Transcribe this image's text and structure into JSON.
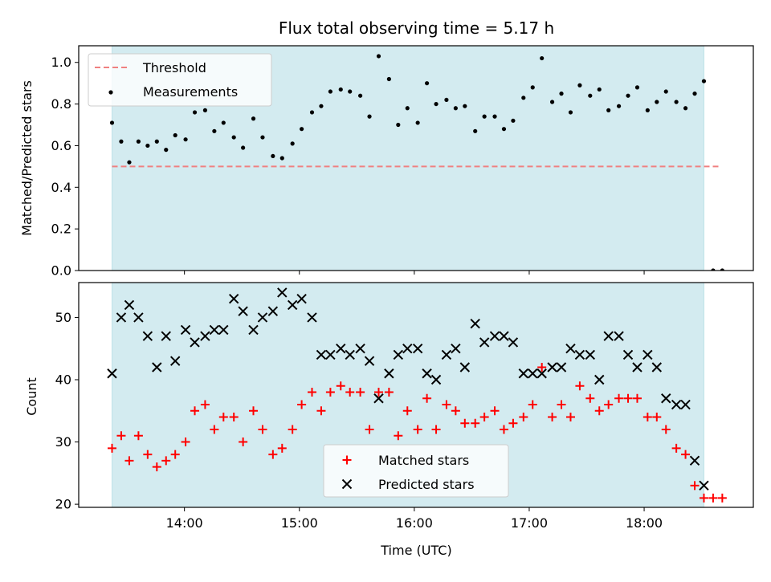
{
  "chart_data": {
    "type": "scatter",
    "title": "Flux total observing time = 5.17 h",
    "xlabel": "Time (UTC)",
    "x_tick_labels": [
      "14:00",
      "15:00",
      "16:00",
      "17:00",
      "18:00"
    ],
    "x_tick_values": [
      14.0,
      15.0,
      16.0,
      17.0,
      18.0
    ],
    "xlim": [
      13.08,
      18.95
    ],
    "observing_window": [
      13.37,
      18.52
    ],
    "observing_color": "#d3ebf0",
    "panels": [
      {
        "ylabel": "Matched/Predicted stars",
        "ylim": [
          0.0,
          1.08
        ],
        "yticks": [
          0.0,
          0.2,
          0.4,
          0.6,
          0.8,
          1.0
        ],
        "ytick_labels": [
          "0.0",
          "0.2",
          "0.4",
          "0.6",
          "0.8",
          "1.0"
        ],
        "legend_position": "top-left",
        "threshold": {
          "name": "Threshold",
          "value": 0.5,
          "x_range": [
            13.37,
            18.65
          ],
          "color": "#f08080"
        },
        "series": [
          {
            "name": "Measurements",
            "marker": "dot",
            "color": "#000000",
            "points": [
              [
                13.37,
                0.71
              ],
              [
                13.45,
                0.62
              ],
              [
                13.52,
                0.52
              ],
              [
                13.6,
                0.62
              ],
              [
                13.68,
                0.6
              ],
              [
                13.76,
                0.62
              ],
              [
                13.84,
                0.58
              ],
              [
                13.92,
                0.65
              ],
              [
                14.01,
                0.63
              ],
              [
                14.09,
                0.76
              ],
              [
                14.18,
                0.77
              ],
              [
                14.26,
                0.67
              ],
              [
                14.34,
                0.71
              ],
              [
                14.43,
                0.64
              ],
              [
                14.51,
                0.59
              ],
              [
                14.6,
                0.73
              ],
              [
                14.68,
                0.64
              ],
              [
                14.77,
                0.55
              ],
              [
                14.85,
                0.54
              ],
              [
                14.94,
                0.61
              ],
              [
                15.02,
                0.68
              ],
              [
                15.11,
                0.76
              ],
              [
                15.19,
                0.79
              ],
              [
                15.27,
                0.86
              ],
              [
                15.36,
                0.87
              ],
              [
                15.44,
                0.86
              ],
              [
                15.53,
                0.84
              ],
              [
                15.61,
                0.74
              ],
              [
                15.69,
                1.03
              ],
              [
                15.78,
                0.92
              ],
              [
                15.86,
                0.7
              ],
              [
                15.94,
                0.78
              ],
              [
                16.03,
                0.71
              ],
              [
                16.11,
                0.9
              ],
              [
                16.19,
                0.8
              ],
              [
                16.28,
                0.82
              ],
              [
                16.36,
                0.78
              ],
              [
                16.44,
                0.79
              ],
              [
                16.53,
                0.67
              ],
              [
                16.61,
                0.74
              ],
              [
                16.7,
                0.74
              ],
              [
                16.78,
                0.68
              ],
              [
                16.86,
                0.72
              ],
              [
                16.95,
                0.83
              ],
              [
                17.03,
                0.88
              ],
              [
                17.11,
                1.02
              ],
              [
                17.2,
                0.81
              ],
              [
                17.28,
                0.85
              ],
              [
                17.36,
                0.76
              ],
              [
                17.44,
                0.89
              ],
              [
                17.53,
                0.84
              ],
              [
                17.61,
                0.87
              ],
              [
                17.69,
                0.77
              ],
              [
                17.78,
                0.79
              ],
              [
                17.86,
                0.84
              ],
              [
                17.94,
                0.88
              ],
              [
                18.03,
                0.77
              ],
              [
                18.11,
                0.81
              ],
              [
                18.19,
                0.86
              ],
              [
                18.28,
                0.81
              ],
              [
                18.36,
                0.78
              ],
              [
                18.44,
                0.85
              ],
              [
                18.52,
                0.91
              ],
              [
                18.6,
                0.0
              ],
              [
                18.68,
                0.0
              ]
            ]
          }
        ]
      },
      {
        "ylabel": "Count",
        "ylim": [
          19.5,
          55.6
        ],
        "yticks": [
          20,
          30,
          40,
          50
        ],
        "ytick_labels": [
          "20",
          "30",
          "40",
          "50"
        ],
        "legend_position": "lower-center",
        "series": [
          {
            "name": "Matched stars",
            "marker": "plus",
            "color": "#ff0000",
            "points": [
              [
                13.37,
                29
              ],
              [
                13.45,
                31
              ],
              [
                13.52,
                27
              ],
              [
                13.6,
                31
              ],
              [
                13.68,
                28
              ],
              [
                13.76,
                26
              ],
              [
                13.84,
                27
              ],
              [
                13.92,
                28
              ],
              [
                14.01,
                30
              ],
              [
                14.09,
                35
              ],
              [
                14.18,
                36
              ],
              [
                14.26,
                32
              ],
              [
                14.34,
                34
              ],
              [
                14.43,
                34
              ],
              [
                14.51,
                30
              ],
              [
                14.6,
                35
              ],
              [
                14.68,
                32
              ],
              [
                14.77,
                28
              ],
              [
                14.85,
                29
              ],
              [
                14.94,
                32
              ],
              [
                15.02,
                36
              ],
              [
                15.11,
                38
              ],
              [
                15.19,
                35
              ],
              [
                15.27,
                38
              ],
              [
                15.36,
                39
              ],
              [
                15.44,
                38
              ],
              [
                15.53,
                38
              ],
              [
                15.61,
                32
              ],
              [
                15.69,
                38
              ],
              [
                15.78,
                38
              ],
              [
                15.86,
                31
              ],
              [
                15.94,
                35
              ],
              [
                16.03,
                32
              ],
              [
                16.11,
                37
              ],
              [
                16.19,
                32
              ],
              [
                16.28,
                36
              ],
              [
                16.36,
                35
              ],
              [
                16.44,
                33
              ],
              [
                16.53,
                33
              ],
              [
                16.61,
                34
              ],
              [
                16.7,
                35
              ],
              [
                16.78,
                32
              ],
              [
                16.86,
                33
              ],
              [
                16.95,
                34
              ],
              [
                17.03,
                36
              ],
              [
                17.11,
                42
              ],
              [
                17.2,
                34
              ],
              [
                17.28,
                36
              ],
              [
                17.36,
                34
              ],
              [
                17.44,
                39
              ],
              [
                17.53,
                37
              ],
              [
                17.61,
                35
              ],
              [
                17.69,
                36
              ],
              [
                17.78,
                37
              ],
              [
                17.86,
                37
              ],
              [
                17.94,
                37
              ],
              [
                18.03,
                34
              ],
              [
                18.11,
                34
              ],
              [
                18.19,
                32
              ],
              [
                18.28,
                29
              ],
              [
                18.36,
                28
              ],
              [
                18.44,
                23
              ],
              [
                18.52,
                21
              ],
              [
                18.6,
                21
              ],
              [
                18.68,
                21
              ]
            ]
          },
          {
            "name": "Predicted stars",
            "marker": "x",
            "color": "#000000",
            "points": [
              [
                13.37,
                41
              ],
              [
                13.45,
                50
              ],
              [
                13.52,
                52
              ],
              [
                13.6,
                50
              ],
              [
                13.68,
                47
              ],
              [
                13.76,
                42
              ],
              [
                13.84,
                47
              ],
              [
                13.92,
                43
              ],
              [
                14.01,
                48
              ],
              [
                14.09,
                46
              ],
              [
                14.18,
                47
              ],
              [
                14.26,
                48
              ],
              [
                14.34,
                48
              ],
              [
                14.43,
                53
              ],
              [
                14.51,
                51
              ],
              [
                14.6,
                48
              ],
              [
                14.68,
                50
              ],
              [
                14.77,
                51
              ],
              [
                14.85,
                54
              ],
              [
                14.94,
                52
              ],
              [
                15.02,
                53
              ],
              [
                15.11,
                50
              ],
              [
                15.19,
                44
              ],
              [
                15.27,
                44
              ],
              [
                15.36,
                45
              ],
              [
                15.44,
                44
              ],
              [
                15.53,
                45
              ],
              [
                15.61,
                43
              ],
              [
                15.69,
                37
              ],
              [
                15.78,
                41
              ],
              [
                15.86,
                44
              ],
              [
                15.94,
                45
              ],
              [
                16.03,
                45
              ],
              [
                16.11,
                41
              ],
              [
                16.19,
                40
              ],
              [
                16.28,
                44
              ],
              [
                16.36,
                45
              ],
              [
                16.44,
                42
              ],
              [
                16.53,
                49
              ],
              [
                16.61,
                46
              ],
              [
                16.7,
                47
              ],
              [
                16.78,
                47
              ],
              [
                16.86,
                46
              ],
              [
                16.95,
                41
              ],
              [
                17.03,
                41
              ],
              [
                17.11,
                41
              ],
              [
                17.2,
                42
              ],
              [
                17.28,
                42
              ],
              [
                17.36,
                45
              ],
              [
                17.44,
                44
              ],
              [
                17.53,
                44
              ],
              [
                17.61,
                40
              ],
              [
                17.69,
                47
              ],
              [
                17.78,
                47
              ],
              [
                17.86,
                44
              ],
              [
                17.94,
                42
              ],
              [
                18.03,
                44
              ],
              [
                18.11,
                42
              ],
              [
                18.19,
                37
              ],
              [
                18.28,
                36
              ],
              [
                18.36,
                36
              ],
              [
                18.44,
                27
              ],
              [
                18.52,
                23
              ]
            ]
          }
        ]
      }
    ]
  }
}
